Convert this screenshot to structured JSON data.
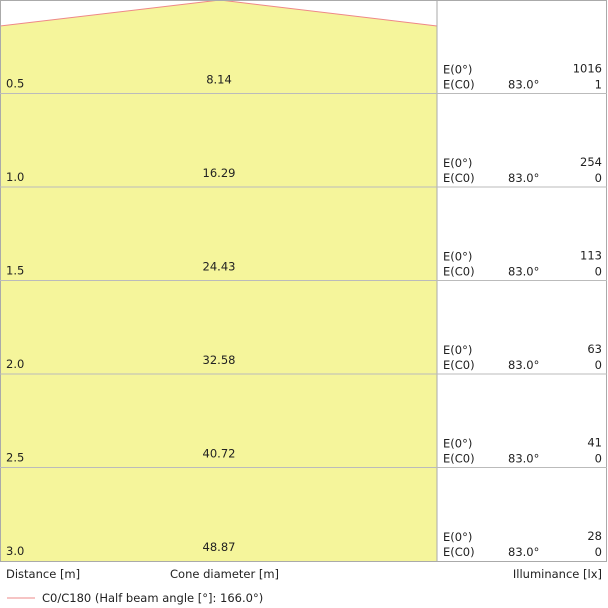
{
  "rows": [
    {
      "distance": "0.5",
      "diameter": "8.14",
      "e0_label": "E(0°)",
      "e0": "1016",
      "ec0_label": "E(C0)",
      "angle": "83.0°",
      "ec0": "1"
    },
    {
      "distance": "1.0",
      "diameter": "16.29",
      "e0_label": "E(0°)",
      "e0": "254",
      "ec0_label": "E(C0)",
      "angle": "83.0°",
      "ec0": "0"
    },
    {
      "distance": "1.5",
      "diameter": "24.43",
      "e0_label": "E(0°)",
      "e0": "113",
      "ec0_label": "E(C0)",
      "angle": "83.0°",
      "ec0": "0"
    },
    {
      "distance": "2.0",
      "diameter": "32.58",
      "e0_label": "E(0°)",
      "e0": "63",
      "ec0_label": "E(C0)",
      "angle": "83.0°",
      "ec0": "0"
    },
    {
      "distance": "2.5",
      "diameter": "40.72",
      "e0_label": "E(0°)",
      "e0": "41",
      "ec0_label": "E(C0)",
      "angle": "83.0°",
      "ec0": "0"
    },
    {
      "distance": "3.0",
      "diameter": "48.87",
      "e0_label": "E(0°)",
      "e0": "28",
      "ec0_label": "E(C0)",
      "angle": "83.0°",
      "ec0": "0"
    }
  ],
  "footer": {
    "distance_label": "Distance [m]",
    "diameter_label": "Cone diameter [m]",
    "illuminance_label": "Illuminance [lx]"
  },
  "legend": {
    "label": "C0/C180 (Half beam angle [°]: 166.0°)"
  }
}
